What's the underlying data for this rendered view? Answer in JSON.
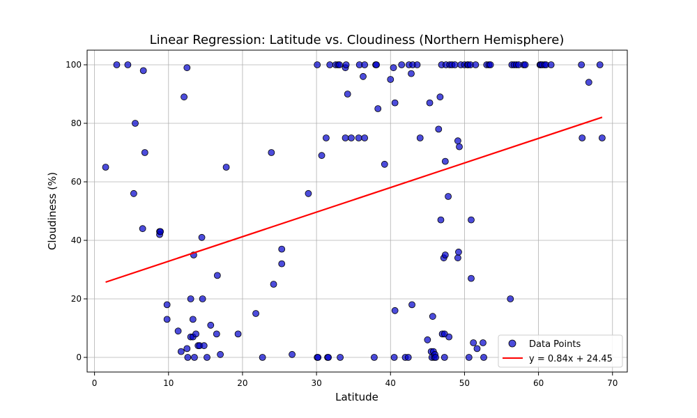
{
  "chart_data": {
    "type": "scatter",
    "title": "Linear Regression: Latitude vs. Cloudiness (Northern Hemisphere)",
    "xlabel": "Latitude",
    "ylabel": "Cloudiness (%)",
    "xlim": [
      -1,
      72
    ],
    "ylim": [
      -5,
      105
    ],
    "xticks": [
      0,
      10,
      20,
      30,
      40,
      50,
      60,
      70
    ],
    "yticks": [
      0,
      20,
      40,
      60,
      80,
      100
    ],
    "grid": true,
    "legend_position": "bottom-right",
    "series": [
      {
        "name": "Data Points",
        "kind": "scatter",
        "color": "#0000cc",
        "points": [
          [
            1.5,
            65
          ],
          [
            3.0,
            100
          ],
          [
            4.5,
            100
          ],
          [
            5.3,
            56
          ],
          [
            5.5,
            80
          ],
          [
            6.5,
            44
          ],
          [
            6.6,
            98
          ],
          [
            6.8,
            70
          ],
          [
            8.8,
            43
          ],
          [
            8.8,
            42
          ],
          [
            8.9,
            43
          ],
          [
            9.8,
            18
          ],
          [
            9.8,
            13
          ],
          [
            11.3,
            9
          ],
          [
            11.7,
            2
          ],
          [
            12.1,
            89
          ],
          [
            12.5,
            99
          ],
          [
            12.5,
            3
          ],
          [
            12.6,
            0
          ],
          [
            13.0,
            20
          ],
          [
            13.0,
            7
          ],
          [
            13.3,
            13
          ],
          [
            13.3,
            7
          ],
          [
            13.4,
            35
          ],
          [
            13.5,
            0
          ],
          [
            13.7,
            8
          ],
          [
            14.0,
            4
          ],
          [
            14.2,
            4
          ],
          [
            14.5,
            41
          ],
          [
            14.6,
            20
          ],
          [
            14.8,
            4
          ],
          [
            15.2,
            0
          ],
          [
            15.7,
            11
          ],
          [
            16.5,
            8
          ],
          [
            16.6,
            28
          ],
          [
            17.0,
            1
          ],
          [
            17.8,
            65
          ],
          [
            19.4,
            8
          ],
          [
            21.8,
            15
          ],
          [
            22.7,
            0
          ],
          [
            23.9,
            70
          ],
          [
            24.2,
            25
          ],
          [
            25.3,
            37
          ],
          [
            25.3,
            32
          ],
          [
            26.7,
            1
          ],
          [
            28.9,
            56
          ],
          [
            30.1,
            100
          ],
          [
            30.1,
            0
          ],
          [
            30.2,
            0
          ],
          [
            30.7,
            69
          ],
          [
            31.3,
            75
          ],
          [
            31.5,
            0
          ],
          [
            31.6,
            0
          ],
          [
            31.8,
            100
          ],
          [
            32.6,
            100
          ],
          [
            32.9,
            100
          ],
          [
            33.1,
            100
          ],
          [
            33.2,
            0
          ],
          [
            33.9,
            75
          ],
          [
            33.9,
            99
          ],
          [
            34.0,
            100
          ],
          [
            34.2,
            90
          ],
          [
            34.7,
            75
          ],
          [
            35.7,
            75
          ],
          [
            35.8,
            100
          ],
          [
            36.3,
            96
          ],
          [
            36.5,
            75
          ],
          [
            36.5,
            100
          ],
          [
            37.8,
            0
          ],
          [
            38.0,
            100
          ],
          [
            38.1,
            100
          ],
          [
            38.3,
            85
          ],
          [
            39.2,
            66
          ],
          [
            40.0,
            95
          ],
          [
            40.4,
            99
          ],
          [
            40.5,
            0
          ],
          [
            40.6,
            87
          ],
          [
            40.6,
            16
          ],
          [
            41.5,
            100
          ],
          [
            42.0,
            0
          ],
          [
            42.4,
            0
          ],
          [
            42.5,
            100
          ],
          [
            42.8,
            97
          ],
          [
            42.9,
            18
          ],
          [
            43.0,
            100
          ],
          [
            43.6,
            100
          ],
          [
            44.0,
            75
          ],
          [
            45.0,
            6
          ],
          [
            45.3,
            87
          ],
          [
            45.5,
            2
          ],
          [
            45.6,
            0
          ],
          [
            45.7,
            14
          ],
          [
            45.8,
            2
          ],
          [
            45.9,
            0
          ],
          [
            46.0,
            1
          ],
          [
            46.1,
            0
          ],
          [
            46.5,
            78
          ],
          [
            46.7,
            89
          ],
          [
            46.8,
            47
          ],
          [
            46.9,
            100
          ],
          [
            47.0,
            8
          ],
          [
            47.2,
            34
          ],
          [
            47.3,
            8
          ],
          [
            47.3,
            0
          ],
          [
            47.4,
            67
          ],
          [
            47.4,
            35
          ],
          [
            47.5,
            100
          ],
          [
            47.8,
            55
          ],
          [
            47.9,
            7
          ],
          [
            48.0,
            100
          ],
          [
            48.3,
            100
          ],
          [
            48.7,
            100
          ],
          [
            49.1,
            74
          ],
          [
            49.1,
            34
          ],
          [
            49.2,
            36
          ],
          [
            49.3,
            72
          ],
          [
            49.5,
            100
          ],
          [
            50.0,
            100
          ],
          [
            50.4,
            100
          ],
          [
            50.5,
            100
          ],
          [
            50.6,
            0
          ],
          [
            50.8,
            100
          ],
          [
            50.9,
            47
          ],
          [
            50.9,
            27
          ],
          [
            51.2,
            5
          ],
          [
            51.5,
            100
          ],
          [
            51.7,
            3
          ],
          [
            52.5,
            5
          ],
          [
            52.6,
            0
          ],
          [
            53.0,
            100
          ],
          [
            53.3,
            100
          ],
          [
            53.5,
            100
          ],
          [
            56.2,
            20
          ],
          [
            56.4,
            100
          ],
          [
            56.7,
            100
          ],
          [
            57.0,
            100
          ],
          [
            57.3,
            100
          ],
          [
            58.0,
            100
          ],
          [
            58.2,
            100
          ],
          [
            60.2,
            100
          ],
          [
            60.3,
            100
          ],
          [
            60.5,
            100
          ],
          [
            60.8,
            100
          ],
          [
            61.0,
            100
          ],
          [
            61.7,
            100
          ],
          [
            65.8,
            100
          ],
          [
            65.9,
            75
          ],
          [
            66.8,
            94
          ],
          [
            68.3,
            100
          ],
          [
            68.6,
            75
          ]
        ]
      },
      {
        "name": "y = 0.84x + 24.45",
        "kind": "line",
        "color": "#ff0000",
        "slope": 0.84,
        "intercept": 24.45,
        "x_range": [
          1.5,
          68.6
        ]
      }
    ]
  }
}
